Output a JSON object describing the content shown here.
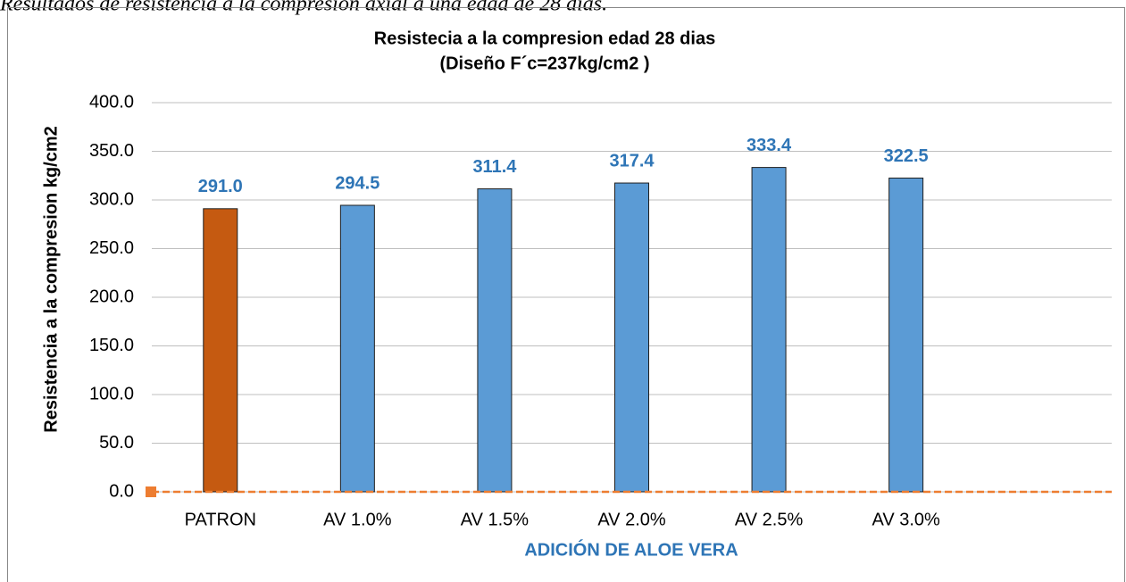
{
  "caption": "Resultados de resistencia a la compresión axial a una edad de 28 días.",
  "chart_data": {
    "type": "bar",
    "title": "Resistecia a la compresion edad 28 dias",
    "subtitle": "(Diseño F´c=237kg/cm2 )",
    "y_label": "Resistencia a la compresion kg/cm2",
    "x_label": "ADICIÓN  DE ALOE VERA",
    "categories": [
      "PATRON",
      "AV 1.0%",
      "AV 1.5%",
      "AV 2.0%",
      "AV 2.5%",
      "AV 3.0%",
      null
    ],
    "values": [
      291.0,
      294.5,
      311.4,
      317.4,
      333.4,
      322.5,
      null
    ],
    "value_labels": [
      "291.0",
      "294.5",
      "311.4",
      "317.4",
      "333.4",
      "322.5",
      null
    ],
    "colors": [
      "#c55a11",
      "#5b9bd5",
      "#5b9bd5",
      "#5b9bd5",
      "#5b9bd5",
      "#5b9bd5",
      null
    ],
    "label_color": "#2e75b6",
    "ylim": [
      0,
      400
    ],
    "yticks": [
      {
        "value": 0,
        "label": "0.0"
      },
      {
        "value": 50,
        "label": "50.0"
      },
      {
        "value": 100,
        "label": "100.0"
      },
      {
        "value": 150,
        "label": "150.0"
      },
      {
        "value": 200,
        "label": "200.0"
      },
      {
        "value": 250,
        "label": "250.0"
      },
      {
        "value": 300,
        "label": "300.0"
      },
      {
        "value": 350,
        "label": "350.0"
      },
      {
        "value": 400,
        "label": "400.0"
      }
    ],
    "grid": true
  }
}
